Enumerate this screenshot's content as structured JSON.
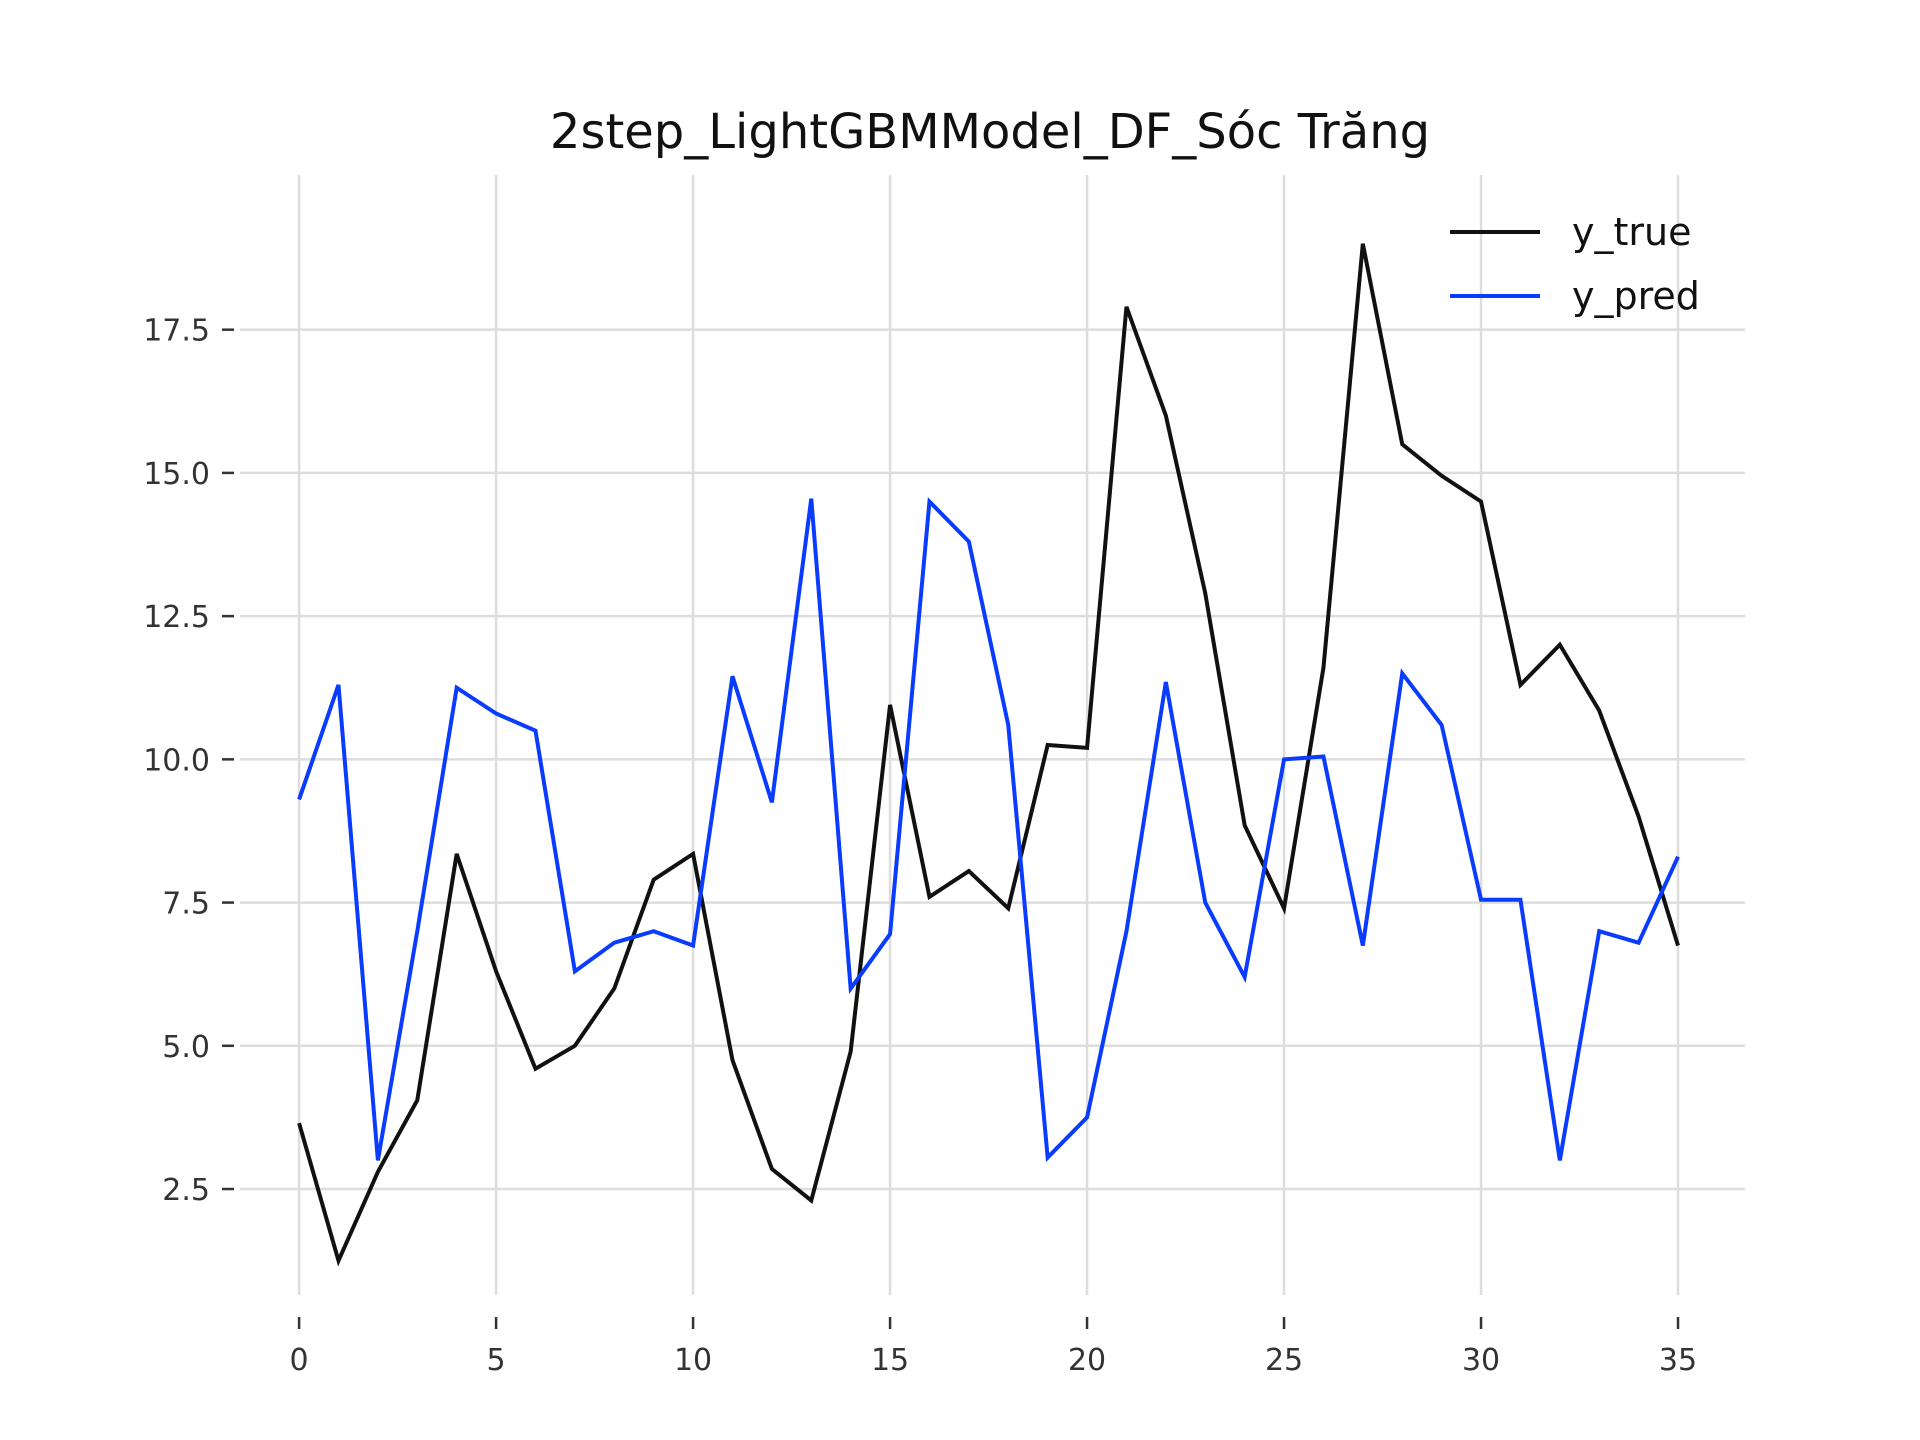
{
  "chart_data": {
    "type": "line",
    "title": "2step_LightGBMModel_DF_Sóc Trăng",
    "xlabel": "",
    "ylabel": "",
    "xlim": [
      -1.5,
      36.7
    ],
    "ylim": [
      0.65,
      20.2
    ],
    "xticks": [
      0,
      5,
      10,
      15,
      20,
      25,
      30,
      35
    ],
    "xtick_labels": [
      "0",
      "5",
      "10",
      "15",
      "20",
      "25",
      "30",
      "35"
    ],
    "yticks": [
      2.5,
      5.0,
      7.5,
      10.0,
      12.5,
      15.0,
      17.5
    ],
    "ytick_labels": [
      "2.5",
      "5.0",
      "7.5",
      "10.0",
      "12.5",
      "15.0",
      "17.5"
    ],
    "grid": true,
    "legend_position": "top-right",
    "x": [
      0,
      1,
      2,
      3,
      4,
      5,
      6,
      7,
      8,
      9,
      10,
      11,
      12,
      13,
      14,
      15,
      16,
      17,
      18,
      19,
      20,
      21,
      22,
      23,
      24,
      25,
      26,
      27,
      28,
      29,
      30,
      31,
      32,
      33,
      34,
      35
    ],
    "series": [
      {
        "name": "y_true",
        "color": "#111111",
        "values": [
          3.65,
          1.25,
          2.8,
          4.05,
          8.35,
          6.3,
          4.6,
          5.0,
          6.0,
          7.9,
          8.35,
          4.75,
          2.85,
          2.3,
          4.9,
          10.95,
          7.6,
          8.05,
          7.4,
          10.25,
          10.2,
          17.9,
          16.0,
          12.9,
          8.85,
          7.4,
          11.6,
          19.0,
          15.5,
          14.95,
          14.5,
          11.3,
          12.0,
          10.85,
          9.0,
          6.75
        ]
      },
      {
        "name": "y_pred",
        "color": "#0a3cff",
        "values": [
          9.3,
          11.3,
          3.0,
          7.0,
          11.25,
          10.8,
          10.5,
          6.3,
          6.8,
          7.0,
          6.75,
          11.45,
          9.25,
          14.55,
          6.0,
          6.95,
          14.5,
          13.8,
          10.6,
          3.05,
          3.75,
          7.0,
          11.35,
          7.5,
          6.2,
          10.0,
          10.05,
          6.75,
          11.5,
          10.6,
          7.55,
          7.55,
          3.0,
          7.0,
          6.8,
          8.3
        ]
      }
    ]
  }
}
